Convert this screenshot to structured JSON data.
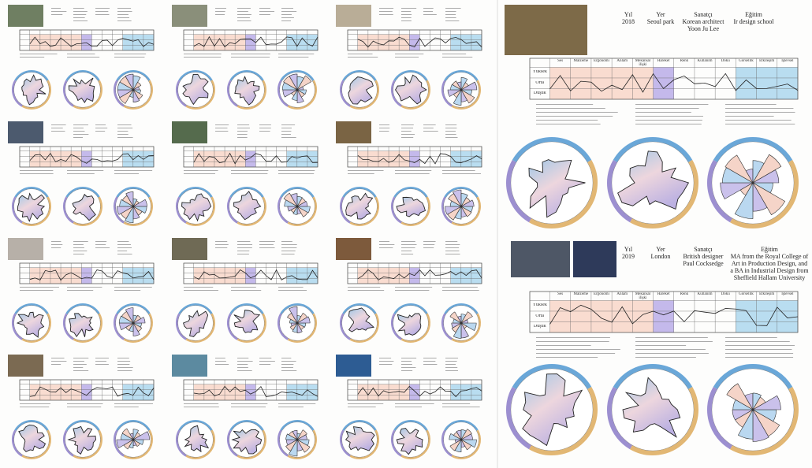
{
  "levels": [
    "Yüksek",
    "Orta",
    "Düşük"
  ],
  "columns": [
    "Ses",
    "Malzeme",
    "Ergonomi",
    "Anlam",
    "Mekânsal ilişki",
    "Hareket",
    "Renk",
    "Kullanım",
    "Doku",
    "Görsellik",
    "Etkileşim",
    "İşlevsel"
  ],
  "panels": [
    {
      "year_label": "Yıl",
      "year": "2018",
      "place_label": "Yer",
      "place": "Seoul park",
      "artist_label": "Sanatçı",
      "artist": "Korean architect Yoon Ju Lee",
      "education_label": "Eğitim",
      "education": "Ir design school"
    },
    {
      "year_label": "Yıl",
      "year": "2019",
      "place_label": "Yer",
      "place": "London",
      "artist_label": "Sanatçı",
      "artist": "British designer Paul Cocksedge",
      "education_label": "Eğitim",
      "education": "MA from the Royal College of Art in Production Design, and a BA in Industrial Design from Sheffield Hallam University"
    }
  ]
}
